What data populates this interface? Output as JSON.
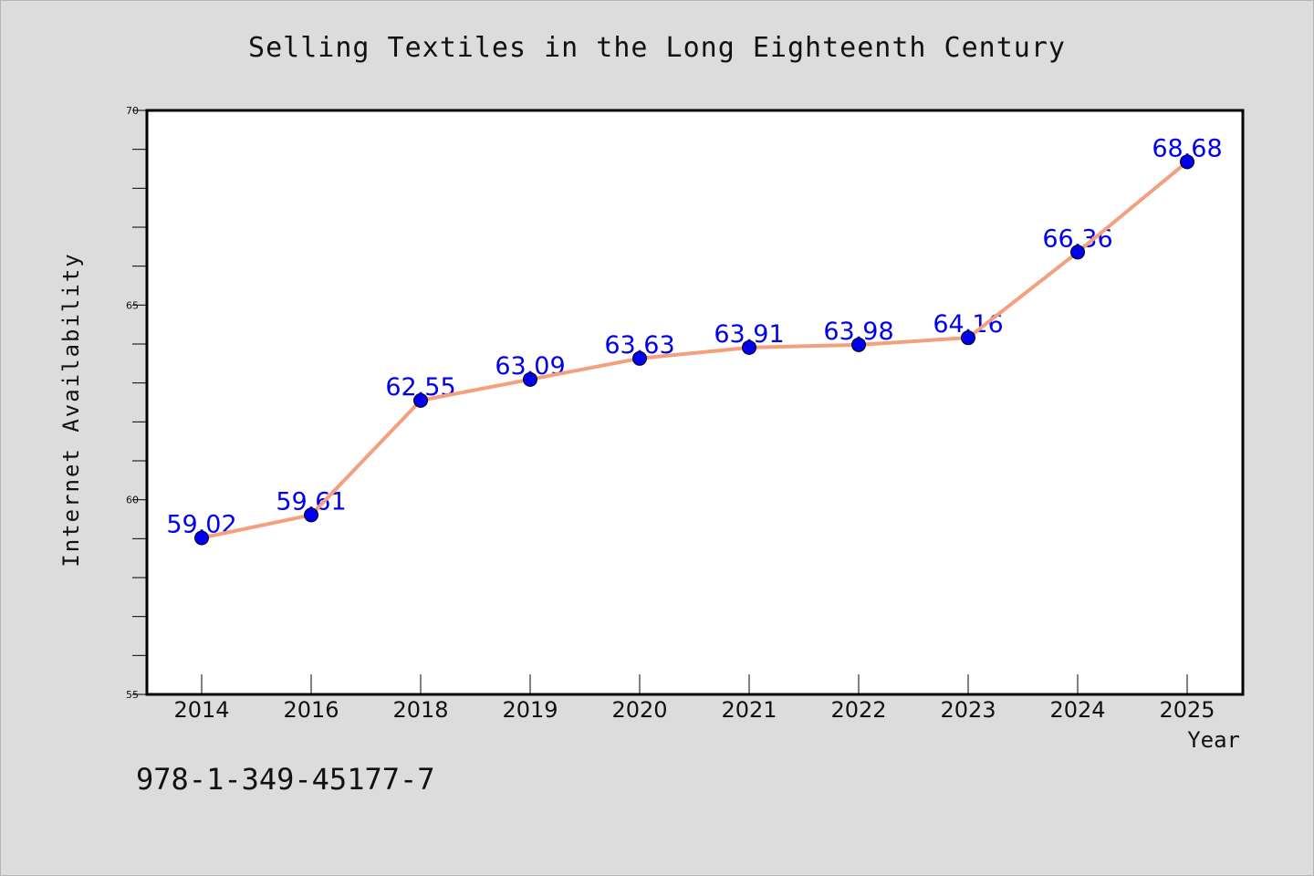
{
  "chart_data": {
    "type": "line",
    "title": "Selling Textiles in the Long Eighteenth Century",
    "xlabel": "Year",
    "ylabel": "Internet Availability",
    "categories": [
      "2014",
      "2016",
      "2018",
      "2019",
      "2020",
      "2021",
      "2022",
      "2023",
      "2024",
      "2025"
    ],
    "series": [
      {
        "values": [
          59.02,
          59.61,
          62.55,
          63.09,
          63.63,
          63.91,
          63.98,
          64.16,
          66.36,
          68.68
        ]
      }
    ],
    "data_labels": [
      "59.02",
      "59.61",
      "62.55",
      "63.09",
      "63.63",
      "63.91",
      "63.98",
      "64.16",
      "66.36",
      "68.68"
    ],
    "ylim": [
      55,
      70
    ],
    "y_major_ticks": [
      55,
      60,
      65,
      70
    ],
    "y_major_tick_labels": [
      "55",
      "60",
      "65",
      "70"
    ],
    "y_minor_step": 1,
    "grid": false,
    "legend": "none",
    "colors": {
      "line": "#f4a07f",
      "marker": "#0000ee",
      "data_label": "#0000ee",
      "plot_background": "#ffffff",
      "figure_background": "#dcdcdc"
    }
  },
  "footer": {
    "text": "978-1-349-45177-7"
  }
}
